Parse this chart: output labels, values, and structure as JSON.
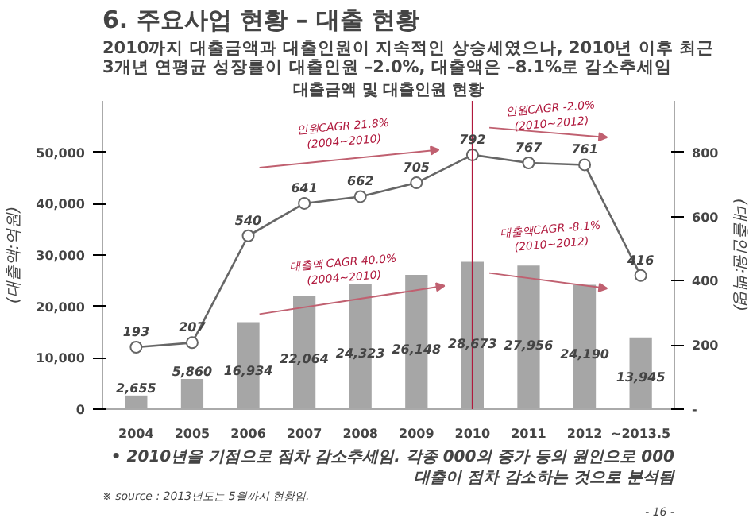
{
  "chart_data": {
    "type": "bar",
    "title": "6. 주요사업 현황 – 대출 현황",
    "subtitle": "2010까지 대출금액과 대출인원이 지속적인 상승세였으나, 2010년 이후 최근 3개년 연평균 성장률이 대출인원 –2.0%, 대출액은 –8.1%로 감소추세임",
    "xlabel": "대출금액 및 대출인원 현황",
    "ylabel": "(대출액:억원)",
    "y2label": "(대출인원:백명)",
    "categories": [
      "2004",
      "2005",
      "2006",
      "2007",
      "2008",
      "2009",
      "2010",
      "2011",
      "2012",
      "~2013.5"
    ],
    "series": [
      {
        "color": "#a6a6a6",
        "values": [
          2655,
          5860,
          16934,
          22064,
          24323,
          26148,
          28673,
          27956,
          24190,
          13945
        ],
        "value_labels": [
          "2,655",
          "5,860",
          "16,934",
          "22,064",
          "24,323",
          "26,148",
          "28,673",
          "27,956",
          "24,190",
          "13,945"
        ]
      },
      {
        "type": "line",
        "axis": "y2",
        "color": "#666666",
        "values": [
          193,
          207,
          540,
          641,
          662,
          705,
          792,
          767,
          761,
          416
        ],
        "value_labels": [
          "193",
          "207",
          "540",
          "641",
          "662",
          "705",
          "792",
          "767",
          "761",
          "416"
        ]
      }
    ],
    "ylim": [
      0,
      60000
    ],
    "yticks": [
      0,
      {
        "value": 10000,
        "label": "10,000"
      },
      {
        "value": 20000,
        "label": "20,000"
      },
      {
        "value": 30000,
        "label": "30,000"
      },
      {
        "value": 40000,
        "label": "40,000"
      },
      {
        "value": 50000,
        "label": "50,000"
      }
    ],
    "y2lim": [
      0,
      960
    ],
    "y2ticks": [
      {
        "value": 0,
        "label": "-"
      },
      200,
      400,
      600,
      800
    ],
    "marker": "circle",
    "line_style": "solid",
    "grid": false,
    "ref_lines": [
      {
        "axis": "x",
        "value": "2010",
        "color": "#b0193d"
      }
    ],
    "annotations": [
      "인원CAGR 21.8%\n(2004~2010)",
      "대출액 CAGR 40.0%\n(2004~2010)",
      "인원CAGR -2.0%\n(2010~2012)",
      "대출액CAGR -8.1%\n(2010~2012)",
      "• 2010년을 기점으로 점차 감소추세임. 각종 000의 증가 등의 원인으로 000 대출이 점차 감소하는 것으로 분석됨",
      "※ source : 2013년도는 5월까지 현황임.",
      "- 16 -"
    ]
  }
}
